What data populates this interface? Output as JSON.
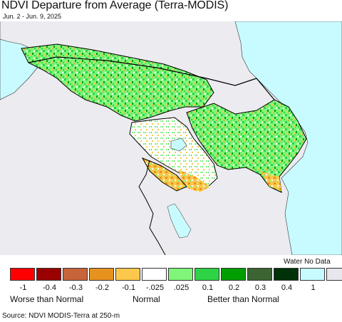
{
  "title": "NDVI Departure from Average (Terra-MODIS)",
  "date_range": "Jun. 2 - Jun. 9, 2025",
  "map": {
    "region": "South Caucasus",
    "colors": {
      "background": "#ecebf0",
      "water": "#c8fbff",
      "border": "#000000"
    }
  },
  "legend": {
    "water_no_data_label": "Water No Data",
    "swatches": [
      {
        "color": "#fe0000"
      },
      {
        "color": "#9b0000"
      },
      {
        "color": "#c8643a"
      },
      {
        "color": "#e7921f"
      },
      {
        "color": "#fbc84b"
      },
      {
        "color": "#ffffff"
      },
      {
        "color": "#7ff57a"
      },
      {
        "color": "#2ed346"
      },
      {
        "color": "#009e00"
      },
      {
        "color": "#3c6432"
      },
      {
        "color": "#00320a"
      },
      {
        "color": "#c8fbff"
      },
      {
        "color": "#e8e7ee"
      }
    ],
    "ticks": [
      "-1",
      "-0.4",
      "-0.3",
      "-0.2",
      "-0.1",
      "-.025",
      ".025",
      "0.1",
      "0.2",
      "0.3",
      "0.4",
      "1"
    ],
    "categories": {
      "below": "Worse than Normal",
      "normal": "Normal",
      "above": "Better than Normal"
    }
  },
  "source": "Source: NDVI MODIS-Terra at 250-m"
}
